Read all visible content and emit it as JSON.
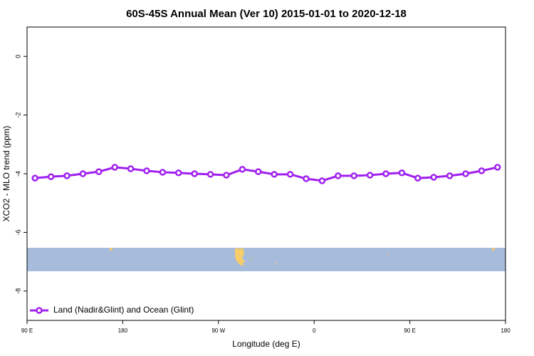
{
  "chart_data": {
    "type": "line",
    "title": "60S-45S Annual Mean (Ver 10)   2015-01-01 to 2020-12-18",
    "x_label": "Longitude (deg E)",
    "y_label": "XCO2 - MLO trend (ppm)",
    "x": [
      97.5,
      112.5,
      127.5,
      142.5,
      157.5,
      172.5,
      187.5,
      202.5,
      217.5,
      232.5,
      247.5,
      262.5,
      277.5,
      292.5,
      307.5,
      322.5,
      337.5,
      352.5,
      367.5,
      382.5,
      397.5,
      412.5,
      427.5,
      442.5,
      457.5,
      472.5,
      487.5,
      502.5,
      517.5,
      532.5
    ],
    "series": [
      {
        "name": "Land (Nadir&Glint) and Ocean (Glint)",
        "color": "#a020f0",
        "values": [
          -4.15,
          -4.1,
          -4.07,
          -4.0,
          -3.93,
          -3.78,
          -3.83,
          -3.9,
          -3.95,
          -3.97,
          -4.0,
          -4.02,
          -4.05,
          -3.85,
          -3.93,
          -4.02,
          -4.02,
          -4.17,
          -4.24,
          -4.07,
          -4.07,
          -4.05,
          -4.0,
          -3.97,
          -4.15,
          -4.12,
          -4.07,
          -4.0,
          -3.9,
          -3.78
        ]
      }
    ],
    "xlim": [
      90,
      540
    ],
    "xticks": [
      {
        "value": 90,
        "label": "90 E"
      },
      180,
      {
        "value": 270,
        "label": "90 W"
      },
      {
        "value": 360,
        "label": "0"
      },
      {
        "value": 450,
        "label": "90 E"
      },
      {
        "value": 540,
        "label": "180"
      }
    ],
    "ylim": [
      -9,
      1
    ],
    "yticks": [
      0,
      -2,
      -4,
      -6,
      -8
    ],
    "legend_position": "bottom-left"
  }
}
